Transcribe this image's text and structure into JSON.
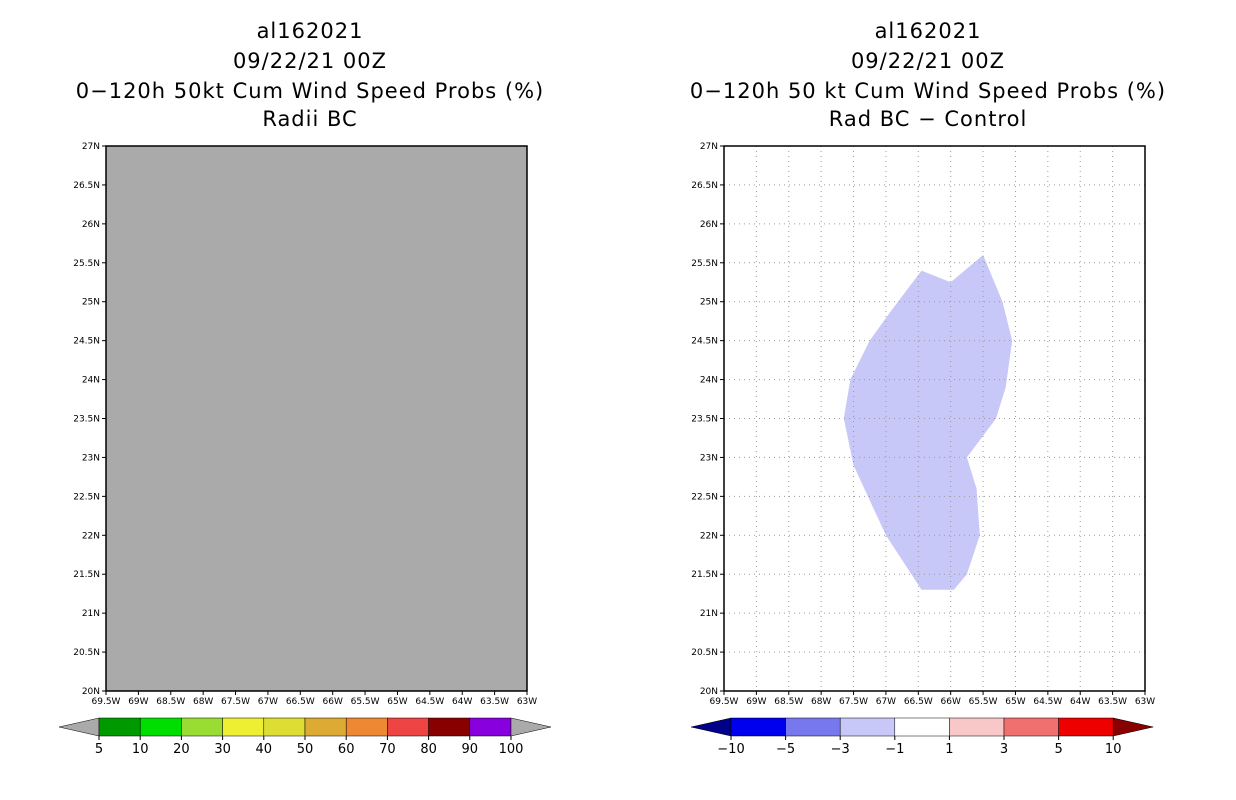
{
  "left_panel": {
    "title_lines": [
      "al162021",
      "09/22/21 00Z",
      "0−120h 50kt Cum Wind Speed Probs (%)",
      "Radii BC"
    ],
    "map_fill_color": "#aaaaaa",
    "colorbar": {
      "colors": [
        "#009900",
        "#00dd00",
        "#99dd33",
        "#eeee33",
        "#dddd33",
        "#ddaa33",
        "#ee8833",
        "#ee4444",
        "#880000",
        "#8800dd"
      ],
      "labels": [
        "5",
        "10",
        "20",
        "30",
        "40",
        "50",
        "60",
        "70",
        "80",
        "90",
        "100"
      ],
      "under_color": "#aaaaaa",
      "over_color": "#aaaaaa"
    }
  },
  "right_panel": {
    "title_lines": [
      "al162021",
      "09/22/21 00Z",
      "0−120h 50 kt Cum Wind Speed Probs (%)",
      "Rad BC − Control"
    ],
    "shaded_region": {
      "color": "#c8c8f8",
      "polygon_lonlat": [
        [
          -66.45,
          25.4
        ],
        [
          -66.0,
          25.25
        ],
        [
          -65.5,
          25.6
        ],
        [
          -65.2,
          25.0
        ],
        [
          -65.05,
          24.5
        ],
        [
          -65.15,
          23.9
        ],
        [
          -65.3,
          23.5
        ],
        [
          -65.75,
          23.0
        ],
        [
          -65.6,
          22.6
        ],
        [
          -65.55,
          22.0
        ],
        [
          -65.75,
          21.5
        ],
        [
          -65.95,
          21.3
        ],
        [
          -66.45,
          21.3
        ],
        [
          -67.0,
          22.0
        ],
        [
          -67.5,
          22.9
        ],
        [
          -67.65,
          23.5
        ],
        [
          -67.55,
          24.0
        ],
        [
          -67.25,
          24.5
        ],
        [
          -66.95,
          24.85
        ]
      ]
    },
    "colorbar": {
      "colors": [
        "#0000ee",
        "#7777ee",
        "#c8c8f8",
        "#ffffff",
        "#f8c8c8",
        "#f07070",
        "#ee0000"
      ],
      "labels": [
        "−10",
        "−5",
        "−3",
        "−1",
        "1",
        "3",
        "5",
        "10"
      ],
      "under_color": "#000088",
      "over_color": "#880000"
    }
  },
  "axes": {
    "lat_labels": [
      "27N",
      "26.5N",
      "26N",
      "25.5N",
      "25N",
      "24.5N",
      "24N",
      "23.5N",
      "23N",
      "22.5N",
      "22N",
      "21.5N",
      "21N",
      "20.5N",
      "20N"
    ],
    "lon_labels": [
      "69.5W",
      "69W",
      "68.5W",
      "68W",
      "67.5W",
      "67W",
      "66.5W",
      "66W",
      "65.5W",
      "65W",
      "64.5W",
      "64W",
      "63.5W",
      "63W"
    ],
    "lat_range": [
      20,
      27
    ],
    "lon_range": [
      -69.5,
      -63
    ]
  }
}
